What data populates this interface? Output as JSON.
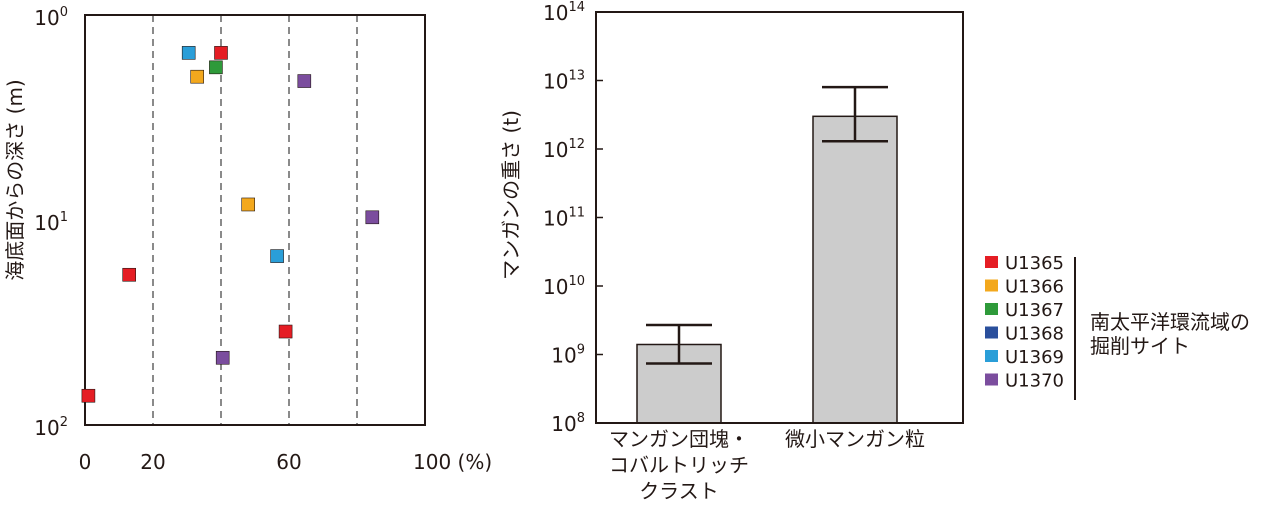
{
  "chart_data": [
    {
      "type": "scatter",
      "ylabel": "海底面からの深さ (m)",
      "xlim": [
        0,
        100
      ],
      "xticks": [
        "0",
        "20",
        "60",
        "100 (%)"
      ],
      "ylim": [
        1,
        100
      ],
      "yscale": "log",
      "yscale_inverted": true,
      "yticks": [
        {
          "base": "10",
          "exp": "0"
        },
        {
          "base": "10",
          "exp": "1"
        },
        {
          "base": "10",
          "exp": "2"
        }
      ],
      "gridlines_x": [
        20,
        40,
        60,
        80
      ],
      "grid": "dashed vertical",
      "series": [
        {
          "name": "U1365",
          "color": "#e51d24",
          "points": [
            [
              40,
              1.53
            ],
            [
              13,
              18.5
            ],
            [
              59,
              35
            ],
            [
              1,
              72
            ]
          ]
        },
        {
          "name": "U1366",
          "color": "#f3a81d",
          "points": [
            [
              33,
              2.0
            ],
            [
              48,
              8.4
            ]
          ]
        },
        {
          "name": "U1367",
          "color": "#2e9a3a",
          "points": [
            [
              38.5,
              1.8
            ]
          ]
        },
        {
          "name": "U1368",
          "color": "#2a4f9c",
          "points": []
        },
        {
          "name": "U1369",
          "color": "#2a9ed8",
          "points": [
            [
              30.5,
              1.53
            ],
            [
              56.5,
              15.0
            ]
          ]
        },
        {
          "name": "U1370",
          "color": "#7b4d9e",
          "points": [
            [
              64.5,
              2.1
            ],
            [
              84.5,
              9.7
            ],
            [
              40.5,
              47
            ]
          ]
        }
      ]
    },
    {
      "type": "bar",
      "ylabel": "マンガンの重さ (t)",
      "yscale": "log",
      "ylim": [
        100000000,
        100000000000000
      ],
      "yticks": [
        {
          "base": "10",
          "exp": "8"
        },
        {
          "base": "10",
          "exp": "9"
        },
        {
          "base": "10",
          "exp": "10"
        },
        {
          "base": "10",
          "exp": "11"
        },
        {
          "base": "10",
          "exp": "12"
        },
        {
          "base": "10",
          "exp": "13"
        },
        {
          "base": "10",
          "exp": "14"
        }
      ],
      "categories": [
        [
          "マンガン団塊・",
          "コバルトリッチ",
          "クラスト"
        ],
        [
          "微小マンガン粒"
        ]
      ],
      "values": [
        1400000000,
        3000000000000
      ],
      "error_low": [
        740000000,
        1300000000000
      ],
      "error_high": [
        2700000000,
        8000000000000
      ],
      "bar_color": "#cccccc"
    }
  ],
  "legend": {
    "placement": "right",
    "group_label": [
      "南太平洋環流域の",
      "掘削サイト"
    ]
  }
}
